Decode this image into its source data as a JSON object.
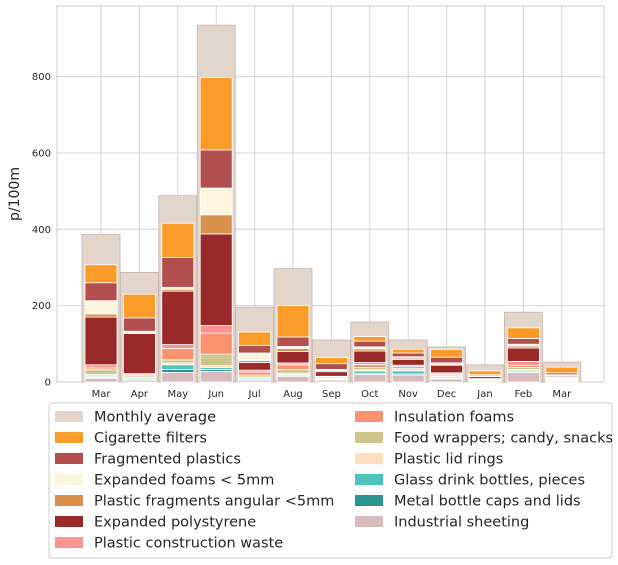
{
  "chart_data": {
    "type": "bar",
    "title": "",
    "xlabel": "",
    "ylabel": "p/100m",
    "ylim": [
      0,
      985
    ],
    "yticks": [
      0,
      200,
      400,
      600,
      800
    ],
    "grid": true,
    "legend_position": "bottom",
    "categories": [
      "Mar",
      "Apr",
      "May",
      "Jun",
      "Jul",
      "Aug",
      "Sep",
      "Oct",
      "Nov",
      "Dec",
      "Jan",
      "Feb",
      "Mar"
    ],
    "background_series": {
      "name": "Monthly average",
      "color": "#e2d5cc",
      "values": [
        387,
        287,
        488,
        935,
        196,
        297,
        110,
        157,
        110,
        92,
        45,
        183,
        52
      ]
    },
    "series": [
      {
        "name": "Industrial sheeting",
        "color": "#d6bcbc",
        "values": [
          10,
          5,
          25,
          28,
          5,
          15,
          5,
          20,
          18,
          8,
          3,
          25,
          3
        ]
      },
      {
        "name": "Metal bottle caps and lids",
        "color": "#2a9590",
        "values": [
          2,
          2,
          8,
          5,
          2,
          2,
          1,
          3,
          3,
          2,
          1,
          3,
          1
        ]
      },
      {
        "name": "Glass drink bottles, pieces",
        "color": "#4fc2bb",
        "values": [
          3,
          3,
          12,
          5,
          3,
          3,
          1,
          6,
          8,
          3,
          1,
          3,
          1
        ]
      },
      {
        "name": "Plastic lid rings",
        "color": "#fde0bf",
        "values": [
          5,
          2,
          5,
          5,
          3,
          3,
          1,
          3,
          3,
          2,
          1,
          2,
          1
        ]
      },
      {
        "name": "Food wrappers; candy, snacks",
        "color": "#cec58b",
        "values": [
          12,
          4,
          8,
          30,
          5,
          10,
          2,
          6,
          4,
          3,
          1,
          5,
          2
        ]
      },
      {
        "name": "Insulation foams",
        "color": "#fc9270",
        "values": [
          5,
          3,
          30,
          55,
          8,
          12,
          3,
          8,
          5,
          3,
          1,
          6,
          2
        ]
      },
      {
        "name": "Plastic construction waste",
        "color": "#f99591",
        "values": [
          8,
          3,
          10,
          20,
          5,
          5,
          2,
          5,
          3,
          3,
          1,
          10,
          2
        ]
      },
      {
        "name": "Expanded polystyrene",
        "color": "#9a2a2a",
        "values": [
          125,
          105,
          140,
          240,
          20,
          30,
          12,
          30,
          15,
          20,
          5,
          35,
          3
        ]
      },
      {
        "name": "Plastic fragments angular <5mm",
        "color": "#d7914d",
        "values": [
          8,
          3,
          5,
          50,
          5,
          8,
          3,
          6,
          4,
          3,
          1,
          5,
          2
        ]
      },
      {
        "name": "Expanded foams < 5mm",
        "color": "#fdf5dd",
        "values": [
          35,
          3,
          5,
          70,
          20,
          5,
          3,
          5,
          3,
          3,
          1,
          5,
          2
        ]
      },
      {
        "name": "Fragmented plastics",
        "color": "#b04f4e",
        "values": [
          47,
          35,
          78,
          100,
          20,
          25,
          15,
          15,
          10,
          15,
          3,
          15,
          5
        ]
      },
      {
        "name": "Cigarette filters",
        "color": "#fb9c2a",
        "values": [
          47,
          62,
          90,
          190,
          35,
          82,
          16,
          12,
          10,
          20,
          10,
          28,
          15
        ]
      }
    ],
    "legend": [
      "Monthly average",
      "Cigarette filters",
      "Fragmented plastics",
      "Expanded foams < 5mm",
      "Plastic fragments angular <5mm",
      "Expanded polystyrene",
      "Plastic construction waste",
      "Insulation foams",
      "Food wrappers; candy, snacks",
      "Plastic lid rings",
      "Glass drink bottles, pieces",
      "Metal bottle caps and lids",
      "Industrial sheeting"
    ]
  }
}
